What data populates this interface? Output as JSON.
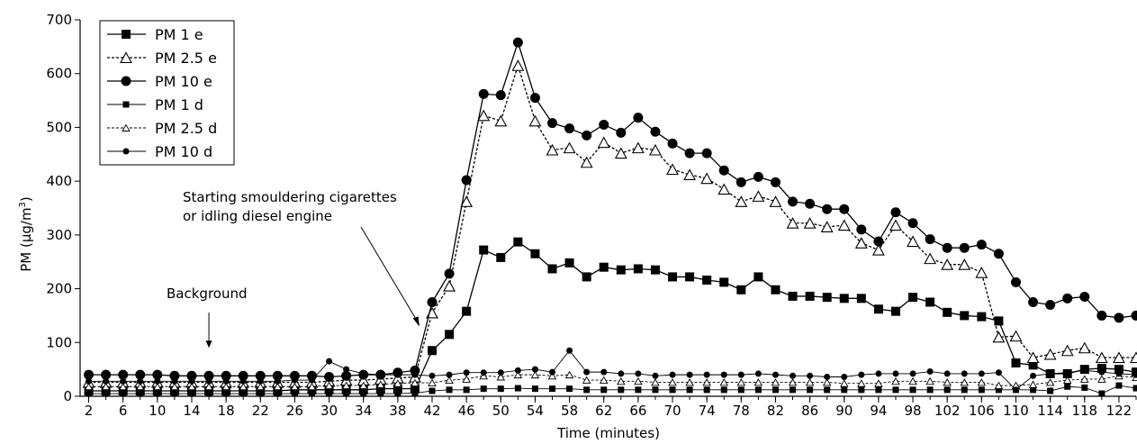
{
  "chart_data": {
    "type": "line",
    "xlabel": "Time (minutes)",
    "ylabel_main": "PM (µg/m",
    "ylabel_sup": "3",
    "ylabel_close": ")",
    "xlim": [
      1,
      124
    ],
    "ylim": [
      0,
      700
    ],
    "yticks": [
      0,
      100,
      200,
      300,
      400,
      500,
      600,
      700
    ],
    "xtick_labels": [
      2,
      6,
      10,
      14,
      18,
      22,
      26,
      30,
      34,
      38,
      42,
      46,
      50,
      54,
      58,
      62,
      66,
      70,
      74,
      78,
      82,
      86,
      90,
      94,
      98,
      102,
      106,
      110,
      114,
      118,
      122
    ],
    "x": [
      2,
      4,
      6,
      8,
      10,
      12,
      14,
      16,
      18,
      20,
      22,
      24,
      26,
      28,
      30,
      32,
      34,
      36,
      38,
      40,
      42,
      44,
      46,
      48,
      50,
      52,
      54,
      56,
      58,
      60,
      62,
      64,
      66,
      68,
      70,
      72,
      74,
      76,
      78,
      80,
      82,
      84,
      86,
      88,
      90,
      92,
      94,
      96,
      98,
      100,
      102,
      104,
      106,
      108,
      110,
      112,
      114,
      116,
      118,
      120,
      122,
      124
    ],
    "grid": false,
    "legend_position": "top-left",
    "series": [
      {
        "name": "PM 1 e",
        "marker": "square",
        "size": "large",
        "dashed": false,
        "values": [
          10,
          10,
          10,
          10,
          10,
          10,
          10,
          10,
          10,
          10,
          10,
          10,
          12,
          12,
          12,
          12,
          12,
          14,
          14,
          14,
          85,
          115,
          158,
          272,
          258,
          287,
          265,
          237,
          248,
          222,
          240,
          235,
          237,
          235,
          222,
          222,
          216,
          212,
          198,
          222,
          198,
          186,
          186,
          184,
          182,
          182,
          162,
          158,
          184,
          175,
          156,
          150,
          148,
          140,
          62,
          58,
          42,
          42,
          50,
          52,
          50,
          45
        ]
      },
      {
        "name": "PM 2.5 e",
        "marker": "triangle",
        "size": "large",
        "dashed": true,
        "values": [
          26,
          26,
          26,
          26,
          26,
          26,
          26,
          26,
          26,
          26,
          26,
          26,
          26,
          26,
          28,
          30,
          30,
          32,
          34,
          36,
          155,
          205,
          362,
          522,
          512,
          615,
          512,
          458,
          462,
          435,
          472,
          452,
          462,
          458,
          422,
          412,
          405,
          385,
          362,
          372,
          362,
          322,
          322,
          315,
          318,
          285,
          272,
          318,
          288,
          256,
          245,
          245,
          230,
          110,
          112,
          72,
          78,
          85,
          90,
          72,
          72,
          72
        ]
      },
      {
        "name": "PM 10 e",
        "marker": "circle",
        "size": "large",
        "dashed": false,
        "values": [
          40,
          40,
          40,
          40,
          40,
          38,
          38,
          38,
          38,
          38,
          38,
          38,
          38,
          38,
          36,
          38,
          40,
          40,
          44,
          48,
          175,
          228,
          402,
          562,
          560,
          658,
          555,
          508,
          498,
          485,
          505,
          490,
          518,
          492,
          470,
          452,
          452,
          420,
          398,
          408,
          398,
          362,
          358,
          348,
          348,
          310,
          288,
          342,
          322,
          292,
          276,
          276,
          282,
          265,
          212,
          175,
          170,
          182,
          185,
          150,
          146,
          150
        ]
      },
      {
        "name": "PM 1 d",
        "marker": "square",
        "size": "small",
        "dashed": false,
        "values": [
          5,
          5,
          5,
          5,
          5,
          5,
          5,
          5,
          5,
          5,
          5,
          5,
          5,
          5,
          5,
          5,
          5,
          5,
          5,
          6,
          10,
          12,
          12,
          14,
          14,
          15,
          14,
          14,
          14,
          12,
          12,
          12,
          12,
          12,
          12,
          12,
          12,
          12,
          12,
          12,
          12,
          12,
          12,
          12,
          12,
          12,
          12,
          12,
          12,
          12,
          12,
          12,
          12,
          12,
          12,
          12,
          10,
          18,
          16,
          5,
          20,
          15
        ]
      },
      {
        "name": "PM 2.5 d",
        "marker": "triangle",
        "size": "small",
        "dashed": true,
        "values": [
          18,
          18,
          18,
          18,
          18,
          18,
          18,
          18,
          18,
          18,
          18,
          18,
          18,
          18,
          20,
          20,
          20,
          22,
          24,
          25,
          25,
          30,
          32,
          38,
          36,
          40,
          40,
          38,
          40,
          30,
          30,
          28,
          28,
          26,
          26,
          26,
          26,
          26,
          26,
          26,
          26,
          26,
          26,
          26,
          24,
          24,
          24,
          28,
          28,
          28,
          26,
          26,
          26,
          20,
          20,
          22,
          26,
          30,
          32,
          32,
          38,
          35
        ]
      },
      {
        "name": "PM 10 d",
        "marker": "circle",
        "size": "small",
        "dashed": false,
        "values": [
          28,
          28,
          28,
          28,
          28,
          28,
          28,
          28,
          28,
          28,
          28,
          28,
          30,
          30,
          65,
          50,
          42,
          40,
          40,
          40,
          38,
          40,
          44,
          44,
          44,
          48,
          50,
          45,
          85,
          45,
          45,
          42,
          42,
          38,
          40,
          40,
          40,
          40,
          40,
          42,
          40,
          38,
          38,
          36,
          36,
          40,
          42,
          42,
          42,
          46,
          42,
          42,
          42,
          44,
          12,
          38,
          42,
          44,
          48,
          45,
          42,
          40
        ]
      }
    ],
    "annotations": [
      {
        "lines": [
          "Starting smouldering cigarettes",
          "or idling diesel engine"
        ],
        "arrow_target": {
          "x": 40.5,
          "y": 130
        }
      },
      {
        "lines": [
          "Background"
        ],
        "arrow_target": {
          "x": 16,
          "y": 90
        }
      }
    ]
  }
}
